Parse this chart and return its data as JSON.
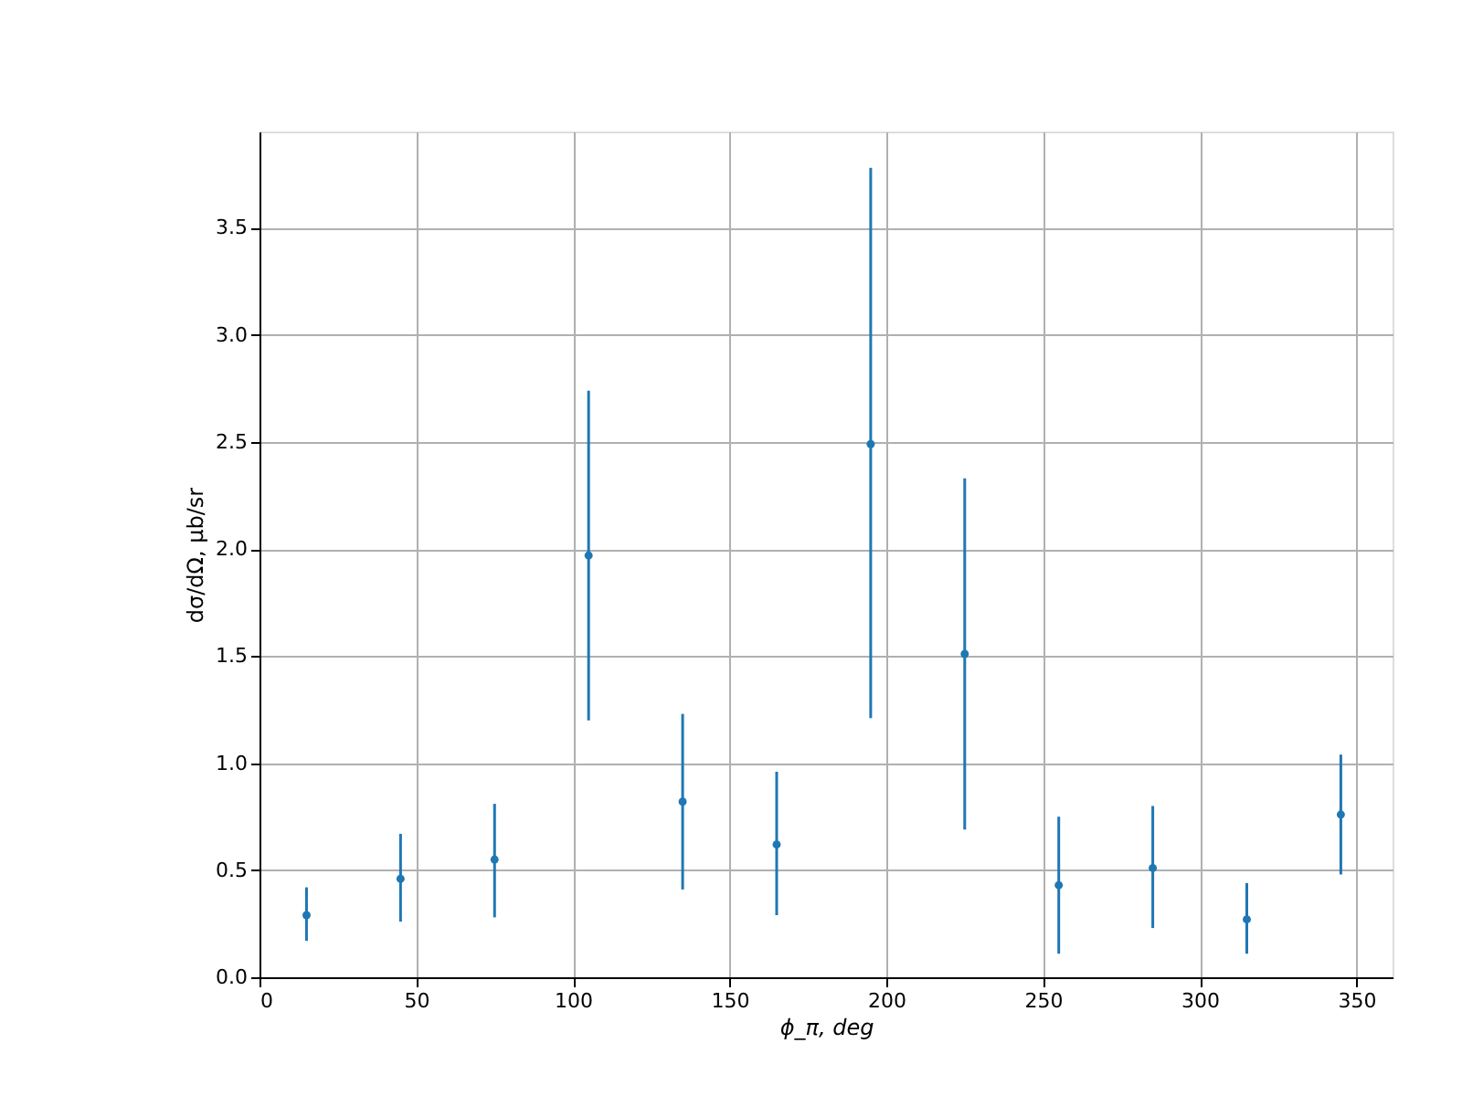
{
  "chart_data": {
    "type": "scatter",
    "xlabel": "ϕ_π, deg",
    "ylabel": "dσ/dΩ, μb/sr",
    "x": [
      15,
      45,
      75,
      105,
      135,
      165,
      195,
      225,
      255,
      285,
      315,
      345
    ],
    "series": [
      {
        "color": "#1f77b4",
        "values": [
          0.29,
          0.46,
          0.55,
          1.97,
          0.82,
          0.62,
          2.49,
          1.51,
          0.43,
          0.51,
          0.27,
          0.76
        ],
        "errors": [
          [
            0.17,
            0.42
          ],
          [
            0.26,
            0.67
          ],
          [
            0.28,
            0.81
          ],
          [
            1.2,
            2.74
          ],
          [
            0.41,
            1.23
          ],
          [
            0.29,
            0.96
          ],
          [
            1.21,
            3.78
          ],
          [
            0.69,
            2.33
          ],
          [
            0.11,
            0.75
          ],
          [
            0.23,
            0.8
          ],
          [
            0.11,
            0.44
          ],
          [
            0.48,
            1.04
          ]
        ]
      }
    ],
    "xlim": [
      0,
      361.5
    ],
    "ylim": [
      0,
      3.95
    ],
    "xticks": [
      0,
      50,
      100,
      150,
      200,
      250,
      300,
      350
    ],
    "yticks": [
      {
        "value": 0,
        "label": "0.0"
      },
      0.5,
      {
        "value": 1,
        "label": "1.0"
      },
      1.5,
      {
        "value": 2,
        "label": "2.0"
      },
      2.5,
      {
        "value": 3,
        "label": "3.0"
      },
      3.5
    ],
    "grid": true,
    "marker": "circle"
  }
}
